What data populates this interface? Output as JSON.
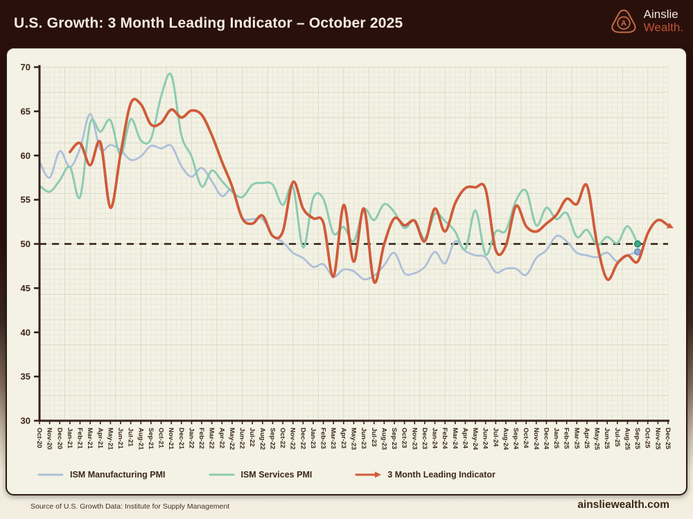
{
  "header": {
    "title": "U.S. Growth: 3 Month Leading Indicator – October 2025",
    "brand": {
      "line1": "Ainslie",
      "line2": "Wealth."
    }
  },
  "footer": {
    "source": "Source of U.S. Growth Data: Institute for Supply Management",
    "website": "ainsliewealth.com"
  },
  "colors": {
    "page_top": "#2a100b",
    "card_bg": "#f4f2e4",
    "card_border": "#2b1b10",
    "grid_minor": "#e6e8da",
    "grid_major": "#d6dac6",
    "axis": "#33211a",
    "text_dark": "#3a261c",
    "reference_line": "#2e1d12",
    "brand_coral": "#c96b4a"
  },
  "chart_data": {
    "type": "line",
    "title": "U.S. Growth: 3 Month Leading Indicator – October 2025",
    "grid": true,
    "legend_position": "bottom",
    "ylim": [
      30,
      70
    ],
    "yticks": [
      70,
      65,
      60,
      55,
      50,
      45,
      40,
      35,
      30
    ],
    "reference_line": {
      "value": 50,
      "style": "dashed"
    },
    "x_labels": [
      "Oct-20",
      "Nov-20",
      "Dec-20",
      "Jan-21",
      "Feb-21",
      "Mar-21",
      "Apr-21",
      "May-21",
      "Jun-21",
      "Jul-21",
      "Aug-21",
      "Sep-21",
      "Oct-21",
      "Nov-21",
      "Dec-21",
      "Jan-22",
      "Feb-22",
      "Mar-22",
      "Apr-22",
      "May-22",
      "Jun-22",
      "Jul-22",
      "Aug-22",
      "Sep-22",
      "Oct-22",
      "Nov-22",
      "Dec-22",
      "Jan-23",
      "Feb-23",
      "Mar-23",
      "Apr-23",
      "May-23",
      "Jun-23",
      "Jul-23",
      "Aug-23",
      "Sep-23",
      "Oct-23",
      "Nov-23",
      "Dec-23",
      "Jan-24",
      "Feb-24",
      "Mar-24",
      "Apr-24",
      "May-24",
      "Jun-24",
      "Jul-24",
      "Aug-24",
      "Sep-24",
      "Oct-24",
      "Nov-24",
      "Dec-24",
      "Jan-25",
      "Feb-25",
      "Mar-25",
      "Apr-25",
      "May-25",
      "Jun-25",
      "Jul-25",
      "Aug-25",
      "Sep-25",
      "Oct-25",
      "Nov-25",
      "Dec-25"
    ],
    "series": [
      {
        "name": "ISM Manufacturing PMI",
        "color": "#adbfd9",
        "width": 2.8,
        "start_index": 0,
        "end_marker": "dot",
        "marker_fill": "#92aed3",
        "marker_stroke": "#6f92c0",
        "values": [
          59.3,
          57.5,
          60.5,
          58.7,
          60.8,
          64.7,
          60.7,
          61.2,
          60.6,
          59.5,
          59.9,
          61.1,
          60.8,
          61.1,
          58.8,
          57.6,
          58.6,
          57.1,
          55.4,
          56.1,
          53.0,
          52.8,
          52.8,
          50.9,
          50.2,
          49.0,
          48.4,
          47.4,
          47.7,
          46.3,
          47.1,
          46.9,
          46.0,
          46.4,
          47.6,
          49.0,
          46.7,
          46.7,
          47.4,
          49.1,
          47.8,
          50.3,
          49.2,
          48.7,
          48.5,
          46.8,
          47.2,
          47.2,
          46.5,
          48.4,
          49.3,
          50.9,
          50.3,
          49.0,
          48.7,
          48.5,
          49.0,
          48.0,
          48.7,
          49.1
        ]
      },
      {
        "name": "ISM Services PMI",
        "color": "#8ccbb2",
        "width": 3,
        "start_index": 0,
        "end_marker": "dot",
        "marker_fill": "#45a98c",
        "marker_stroke": "#2e8e73",
        "values": [
          56.6,
          55.9,
          57.2,
          58.7,
          55.3,
          63.7,
          62.7,
          64.0,
          60.1,
          64.1,
          61.7,
          61.9,
          66.7,
          69.1,
          62.3,
          59.9,
          56.5,
          58.3,
          57.1,
          55.9,
          55.3,
          56.7,
          56.9,
          56.7,
          54.4,
          56.5,
          49.6,
          55.2,
          55.1,
          51.2,
          51.9,
          50.3,
          53.9,
          52.7,
          54.5,
          53.6,
          51.8,
          52.7,
          50.6,
          53.4,
          52.6,
          51.4,
          49.4,
          53.8,
          48.8,
          51.4,
          51.5,
          54.9,
          56.0,
          52.1,
          54.1,
          52.8,
          53.5,
          50.8,
          51.6,
          49.9,
          50.8,
          50.1,
          52.0,
          50.0
        ]
      },
      {
        "name": "3 Month Leading Indicator",
        "color": "#cf5b3a",
        "width": 3.8,
        "start_index": 3,
        "end_marker": "arrow",
        "marker_fill": "#cf5b3a",
        "marker_stroke": "#cf5b3a",
        "values": [
          60.4,
          61.4,
          58.9,
          61.5,
          54.1,
          60.2,
          65.9,
          65.8,
          63.5,
          63.7,
          65.2,
          64.3,
          65.1,
          64.6,
          62.3,
          59.3,
          56.5,
          52.9,
          52.3,
          53.2,
          50.9,
          51.4,
          57.0,
          54.0,
          52.9,
          52.4,
          46.3,
          54.4,
          48.0,
          54.0,
          45.7,
          50.0,
          52.9,
          52.1,
          52.6,
          50.3,
          54.0,
          51.4,
          54.6,
          56.3,
          56.4,
          56.2,
          49.3,
          49.8,
          54.3,
          52.0,
          51.4,
          52.3,
          53.3,
          55.1,
          54.5,
          56.6,
          50.0,
          46.0,
          47.8,
          48.7,
          48.0,
          51.2,
          52.7,
          52.1
        ]
      }
    ]
  }
}
